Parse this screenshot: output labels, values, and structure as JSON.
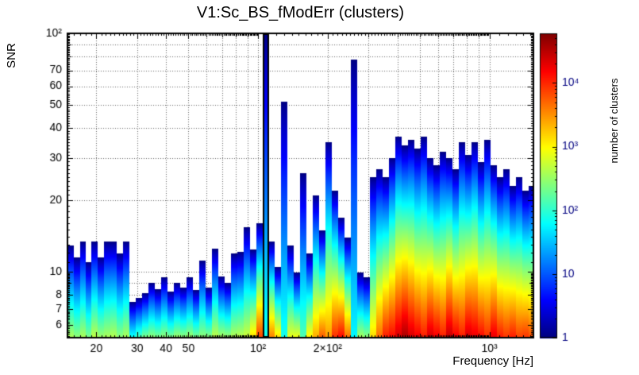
{
  "chart_data": {
    "type": "heatmap",
    "title": "V1:Sc_BS_fModErr (clusters)",
    "xlabel": "Frequency [Hz]",
    "ylabel": "SNR",
    "zlabel": "number of clusters",
    "xscale": "log",
    "yscale": "log",
    "zscale": "log",
    "xlim": [
      15,
      1550
    ],
    "ylim": [
      5.3,
      100
    ],
    "zlim": [
      1,
      60000
    ],
    "grid": true,
    "x_ticks": [
      {
        "v": 20,
        "label": "20"
      },
      {
        "v": 30,
        "label": "30"
      },
      {
        "v": 40,
        "label": "40"
      },
      {
        "v": 50,
        "label": "50"
      },
      {
        "v": 100,
        "label": "10²"
      },
      {
        "v": 200,
        "label": "2×10²"
      },
      {
        "v": 1000,
        "label": "10³"
      }
    ],
    "y_ticks": [
      {
        "v": 6,
        "label": "6"
      },
      {
        "v": 7,
        "label": "7"
      },
      {
        "v": 8,
        "label": "8"
      },
      {
        "v": 10,
        "label": "10"
      },
      {
        "v": 20,
        "label": "20"
      },
      {
        "v": 30,
        "label": "30"
      },
      {
        "v": 40,
        "label": "40"
      },
      {
        "v": 50,
        "label": "50"
      },
      {
        "v": 60,
        "label": "60"
      },
      {
        "v": 70,
        "label": "70"
      },
      {
        "v": 100,
        "label": "10²"
      }
    ],
    "z_ticks": [
      {
        "v": 1,
        "label": "1"
      },
      {
        "v": 10,
        "label": "10"
      },
      {
        "v": 100,
        "label": "10²"
      },
      {
        "v": 1000,
        "label": "10³"
      },
      {
        "v": 10000,
        "label": "10⁴"
      }
    ],
    "columns_format": [
      "f_low_hz",
      "f_high_hz",
      "snr_max",
      "clusters_at_base",
      "outlined"
    ],
    "columns": [
      [
        15.0,
        16.0,
        13.0,
        400
      ],
      [
        16.0,
        17.0,
        11.5,
        300
      ],
      [
        17.0,
        18.0,
        13.5,
        400
      ],
      [
        18.0,
        19.0,
        11.0,
        250
      ],
      [
        19.0,
        20.3,
        13.5,
        500
      ],
      [
        20.3,
        21.6,
        11.5,
        350
      ],
      [
        21.6,
        23.0,
        13.5,
        400
      ],
      [
        23.0,
        24.5,
        13.5,
        450
      ],
      [
        24.5,
        26.0,
        12.0,
        300
      ],
      [
        26.0,
        27.7,
        13.5,
        400
      ],
      [
        27.7,
        29.5,
        7.5,
        80
      ],
      [
        29.5,
        31.4,
        7.8,
        150
      ],
      [
        31.4,
        33.5,
        8.2,
        250
      ],
      [
        33.5,
        35.7,
        9.0,
        300
      ],
      [
        35.7,
        38.0,
        8.5,
        250
      ],
      [
        38.0,
        40.5,
        9.5,
        300
      ],
      [
        40.5,
        43.1,
        8.3,
        250
      ],
      [
        43.1,
        45.9,
        9.0,
        350
      ],
      [
        45.9,
        48.9,
        8.6,
        300
      ],
      [
        48.9,
        52.1,
        9.5,
        350
      ],
      [
        52.1,
        55.5,
        8.4,
        250
      ],
      [
        55.5,
        59.1,
        11.2,
        300
      ],
      [
        59.1,
        63.0,
        8.6,
        300
      ],
      [
        63.0,
        67.1,
        12.6,
        500
      ],
      [
        67.1,
        71.5,
        9.6,
        400
      ],
      [
        71.5,
        76.1,
        9.0,
        350
      ],
      [
        76.1,
        81.1,
        12.0,
        450
      ],
      [
        81.1,
        86.4,
        12.2,
        500
      ],
      [
        86.4,
        92.0,
        15.5,
        600
      ],
      [
        92.0,
        98.0,
        12.5,
        1500
      ],
      [
        98.0,
        104.4,
        16.0,
        8000
      ],
      [
        104.4,
        111.2,
        100.0,
        80,
        1
      ],
      [
        111.2,
        118.4,
        13.5,
        4000
      ],
      [
        118.4,
        126.1,
        10.5,
        1500
      ],
      [
        126.1,
        134.3,
        52.0,
        80
      ],
      [
        134.3,
        143.1,
        13.0,
        800
      ],
      [
        143.1,
        152.4,
        10.0,
        900
      ],
      [
        152.4,
        162.3,
        26.0,
        150
      ],
      [
        162.3,
        172.9,
        12.0,
        1200
      ],
      [
        172.9,
        184.1,
        21.0,
        2500
      ],
      [
        184.1,
        196.1,
        15.0,
        6000
      ],
      [
        196.1,
        208.9,
        35.0,
        3000
      ],
      [
        208.9,
        222.5,
        22.0,
        10000
      ],
      [
        222.5,
        237.0,
        17.0,
        15000
      ],
      [
        237.0,
        252.4,
        14.0,
        5000
      ],
      [
        252.4,
        268.8,
        78.0,
        60
      ],
      [
        268.8,
        286.3,
        10.0,
        400
      ],
      [
        286.3,
        305.0,
        9.5,
        300
      ],
      [
        305.0,
        324.8,
        25.0,
        1500
      ],
      [
        324.8,
        346.0,
        27.0,
        5000
      ],
      [
        346.0,
        368.5,
        25.0,
        12000
      ],
      [
        368.5,
        392.5,
        30.0,
        15000
      ],
      [
        392.5,
        418.0,
        37.0,
        25000
      ],
      [
        418.0,
        445.2,
        34.0,
        40000
      ],
      [
        445.2,
        474.2,
        36.0,
        25000
      ],
      [
        474.2,
        505.0,
        33.0,
        18000
      ],
      [
        505.0,
        537.9,
        37.0,
        12000
      ],
      [
        537.9,
        572.9,
        30.0,
        25000
      ],
      [
        572.9,
        610.2,
        28.0,
        18000
      ],
      [
        610.2,
        649.9,
        32.0,
        12000
      ],
      [
        649.9,
        692.2,
        30.0,
        30000
      ],
      [
        692.2,
        737.3,
        27.0,
        18000
      ],
      [
        737.3,
        785.3,
        35.0,
        12000
      ],
      [
        785.3,
        836.4,
        31.0,
        25000
      ],
      [
        836.4,
        890.8,
        35.0,
        20000
      ],
      [
        890.8,
        948.8,
        29.0,
        15000
      ],
      [
        948.8,
        1010.6,
        36.0,
        10000
      ],
      [
        1010.6,
        1076.4,
        28.0,
        20000
      ],
      [
        1076.4,
        1146.4,
        25.0,
        12000
      ],
      [
        1146.4,
        1221.0,
        27.0,
        9000
      ],
      [
        1221.0,
        1300.5,
        23.0,
        12000
      ],
      [
        1300.5,
        1385.1,
        25.0,
        8000
      ],
      [
        1385.1,
        1475.3,
        22.0,
        9000
      ],
      [
        1475.3,
        1550.0,
        23.0,
        7000
      ]
    ]
  }
}
